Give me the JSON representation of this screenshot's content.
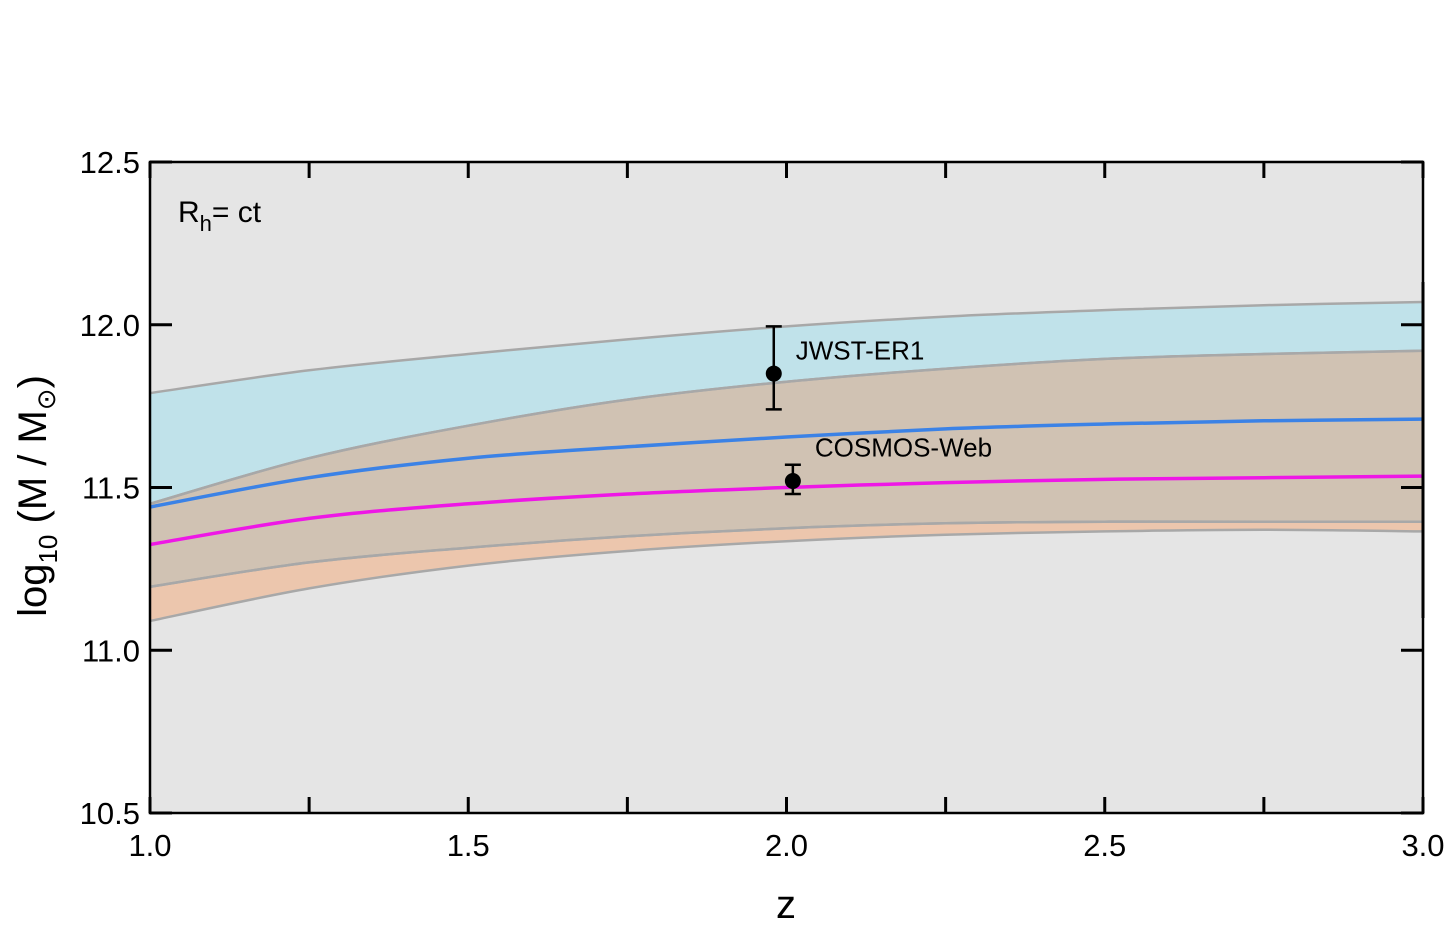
{
  "chart_data": {
    "type": "line",
    "title": "",
    "xlabel": "z",
    "ylabel": {
      "main": "log",
      "sub": "10",
      "rest": " (M / M",
      "symbol": "⊙",
      "close": ")"
    },
    "model_label": {
      "main": "R",
      "sub": "h",
      "rest": "= ct"
    },
    "xlim": [
      1.0,
      3.0
    ],
    "ylim": [
      10.5,
      12.5
    ],
    "x_ticks": [
      "1.0",
      "1.5",
      "2.0",
      "2.5",
      "3.0"
    ],
    "y_ticks": [
      "10.5",
      "11.0",
      "11.5",
      "12.0",
      "12.5"
    ],
    "grid": false,
    "colors": {
      "background": "#e5e5e5",
      "band_blue": "#c0e2ea",
      "band_brown": "#d0c2b3",
      "band_orange": "#ecc6ad",
      "band_edge": "#a8a8a8",
      "line_blue": "#3b82e6",
      "line_magenta": "#ee17e6",
      "points": "#000000"
    },
    "x": [
      1.0,
      1.25,
      1.5,
      1.75,
      2.0,
      2.25,
      2.5,
      2.75,
      3.0
    ],
    "bands": [
      {
        "upper": [
          11.79,
          11.86,
          11.91,
          11.955,
          11.995,
          12.025,
          12.045,
          12.06,
          12.07
        ],
        "lower": [
          11.45,
          11.59,
          11.69,
          11.77,
          11.825,
          11.865,
          11.895,
          11.91,
          11.92
        ],
        "fill": "band_blue"
      },
      {
        "upper": [
          11.45,
          11.59,
          11.69,
          11.77,
          11.825,
          11.865,
          11.895,
          11.91,
          11.92
        ],
        "lower": [
          11.195,
          11.27,
          11.315,
          11.35,
          11.375,
          11.39,
          11.395,
          11.395,
          11.395
        ],
        "fill": "band_brown"
      },
      {
        "upper": [
          11.195,
          11.27,
          11.315,
          11.35,
          11.375,
          11.39,
          11.395,
          11.395,
          11.395
        ],
        "lower": [
          11.09,
          11.19,
          11.26,
          11.305,
          11.335,
          11.355,
          11.365,
          11.37,
          11.365
        ],
        "fill": "band_orange"
      }
    ],
    "series": [
      {
        "values": [
          11.44,
          11.53,
          11.59,
          11.625,
          11.655,
          11.68,
          11.695,
          11.705,
          11.71
        ],
        "color": "line_blue"
      },
      {
        "values": [
          11.325,
          11.405,
          11.45,
          11.48,
          11.5,
          11.515,
          11.525,
          11.53,
          11.535
        ],
        "color": "line_magenta"
      }
    ],
    "points": [
      {
        "label": "JWST-ER1",
        "x": 1.98,
        "y": 11.85,
        "yerr_low": 0.11,
        "yerr_high": 0.145
      },
      {
        "label": "COSMOS-Web",
        "x": 2.01,
        "y": 11.52,
        "yerr_low": 0.04,
        "yerr_high": 0.05
      }
    ]
  }
}
